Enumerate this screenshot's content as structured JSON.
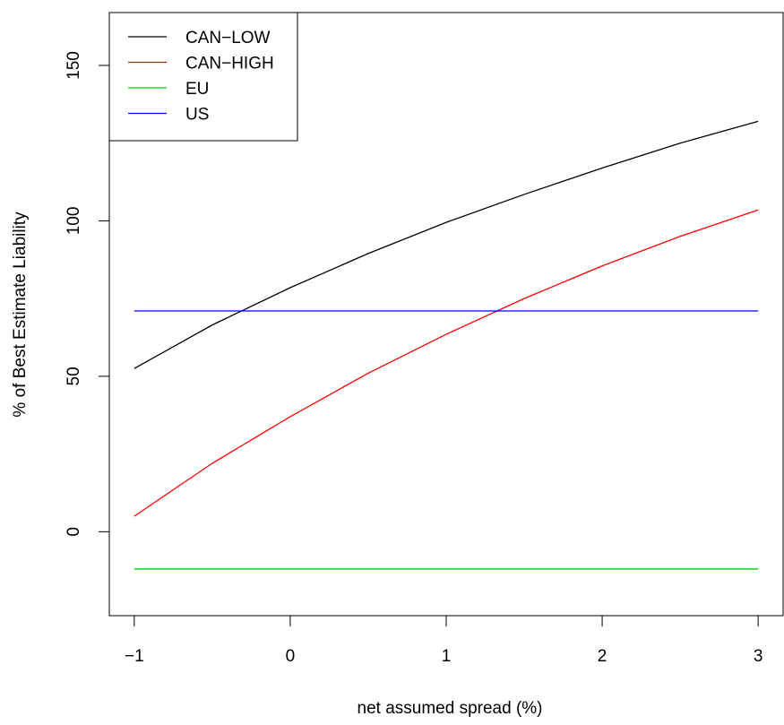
{
  "chart_data": {
    "type": "line",
    "title": "",
    "xlabel": "net assumed spread (%)",
    "ylabel": "% of Best Estimate Liability",
    "xlim": [
      -1.16,
      3.16
    ],
    "ylim": [
      -27,
      167
    ],
    "xticks": [
      -1,
      0,
      1,
      2,
      3
    ],
    "xtick_labels": [
      "−1",
      "0",
      "1",
      "2",
      "3"
    ],
    "yticks": [
      0,
      50,
      100,
      150
    ],
    "ytick_labels": [
      "0",
      "50",
      "100",
      "150"
    ],
    "grid": false,
    "legend_position": "top-left",
    "x": [
      -1,
      -0.5,
      0,
      0.5,
      1,
      1.5,
      2,
      2.5,
      3
    ],
    "series": [
      {
        "name": "CAN−LOW",
        "color": "#000000",
        "values": [
          52.5,
          66.5,
          78.5,
          89.5,
          99.5,
          108.5,
          117,
          125,
          132
        ]
      },
      {
        "name": "CAN−HIGH",
        "color": "#ff0000",
        "values": [
          5,
          22,
          37,
          51,
          63.5,
          75,
          85.5,
          95,
          103.5
        ]
      },
      {
        "name": "EU",
        "color": "#00cd00",
        "values": [
          -12,
          -12,
          -12,
          -12,
          -12,
          -12,
          -12,
          -12,
          -12
        ]
      },
      {
        "name": "US",
        "color": "#0000ff",
        "values": [
          71,
          71,
          71,
          71,
          71,
          71,
          71,
          71,
          71
        ]
      }
    ]
  }
}
